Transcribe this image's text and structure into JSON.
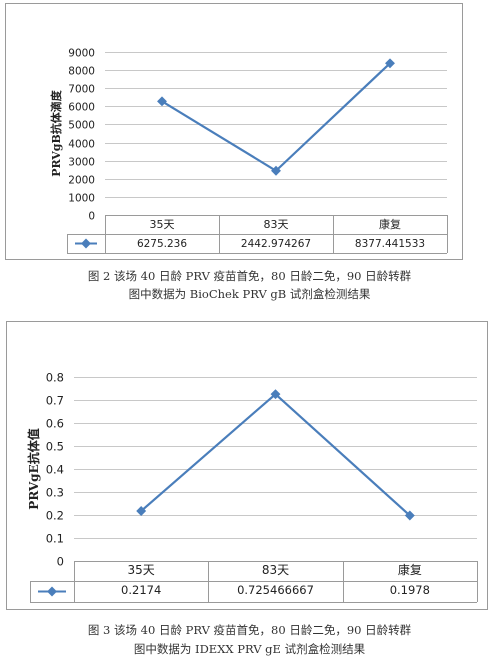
{
  "charts": [
    {
      "caption_line1": "图 2   该场 40 日龄 PRV 疫苗首免，80 日龄二免，90 日龄转群",
      "caption_line2": "图中数据为 BioChek PRV gB 试剂盒检测结果"
    },
    {
      "caption_line1": "图 3   该场 40 日龄 PRV 疫苗首免，80 日龄二免，90 日龄转群",
      "caption_line2": "图中数据为 IDEXX PRV gE 试剂盒检测结果"
    }
  ],
  "chart_data": [
    {
      "type": "line",
      "title": "",
      "ylabel": "PRVgB抗体滴度",
      "xlabel": "",
      "categories": [
        "35天",
        "83天",
        "康复"
      ],
      "series": [
        {
          "values": [
            6275.236,
            2442.974267,
            8377.441533
          ],
          "value_labels": [
            "6275.236",
            "2442.974267",
            "8377.441533"
          ]
        }
      ],
      "ylim": [
        0,
        9000
      ],
      "yticks": [
        "0",
        "1000",
        "2000",
        "3000",
        "4000",
        "5000",
        "6000",
        "7000",
        "8000",
        "9000"
      ],
      "grid": true,
      "legend": "data-table",
      "color": "#4a7ebb"
    },
    {
      "type": "line",
      "title": "",
      "ylabel": "PRVgE抗体值",
      "xlabel": "",
      "categories": [
        "35天",
        "83天",
        "康复"
      ],
      "series": [
        {
          "values": [
            0.2174,
            0.725466667,
            0.1978
          ],
          "value_labels": [
            "0.2174",
            "0.725466667",
            "0.1978"
          ]
        }
      ],
      "ylim": [
        0,
        0.8
      ],
      "yticks": [
        "0",
        "0.1",
        "0.2",
        "0.3",
        "0.4",
        "0.5",
        "0.6",
        "0.7",
        "0.8"
      ],
      "grid": true,
      "legend": "data-table",
      "color": "#4a7ebb"
    }
  ]
}
